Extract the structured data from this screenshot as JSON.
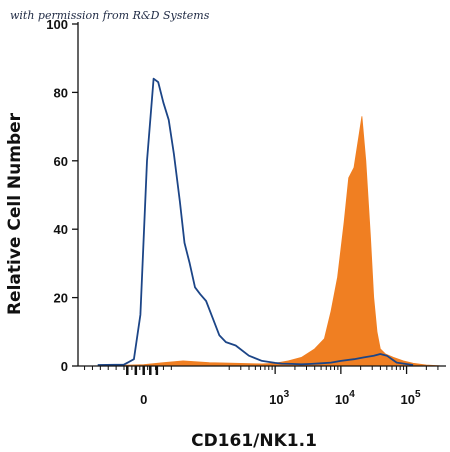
{
  "watermark": "with permission from R&D Systems",
  "chart_data": {
    "type": "area",
    "xlabel": "CD161/NK1.1",
    "ylabel": "Relative Cell Number",
    "ylim": [
      0,
      100
    ],
    "y_ticks": [
      "0",
      "20",
      "40",
      "60",
      "80",
      "100"
    ],
    "x_ticks": [
      {
        "base": "0",
        "exp": ""
      },
      {
        "base": "10",
        "exp": "3"
      },
      {
        "base": "10",
        "exp": "4"
      },
      {
        "base": "10",
        "exp": "5"
      }
    ],
    "x_scale": "biexponential",
    "grid": false,
    "legend": "none",
    "colors": {
      "isotype": "#1c4587",
      "stained": "#f07f22"
    },
    "series": [
      {
        "style": "outline",
        "color": "#1c4587",
        "x": [
          -0.7,
          -0.3,
          -0.15,
          -0.05,
          0.05,
          0.15,
          0.22,
          0.3,
          0.38,
          0.46,
          0.55,
          0.62,
          0.7,
          0.78,
          0.86,
          0.95,
          1.05,
          1.15,
          1.25,
          1.4,
          1.6,
          1.8,
          2.0,
          2.1,
          2.25,
          2.4,
          2.55,
          2.7,
          2.85,
          3.0,
          3.2,
          3.35,
          3.5,
          3.6,
          3.7,
          3.85,
          4.1
        ],
        "y": [
          0.3,
          0.4,
          2,
          15,
          60,
          84,
          83,
          77,
          72,
          62,
          48,
          36,
          30,
          23,
          21,
          19,
          14,
          9,
          7,
          6,
          3,
          1.5,
          0.9,
          0.7,
          0.6,
          0.5,
          0.6,
          0.8,
          1,
          1.5,
          2,
          2.5,
          3,
          3.5,
          3,
          1,
          0.3
        ]
      },
      {
        "style": "filled",
        "color": "#f07f22",
        "x": [
          -0.3,
          0,
          0.3,
          0.6,
          1.0,
          1.4,
          1.8,
          2.0,
          2.2,
          2.4,
          2.6,
          2.75,
          2.85,
          2.95,
          3.05,
          3.12,
          3.2,
          3.28,
          3.32,
          3.38,
          3.45,
          3.5,
          3.55,
          3.6,
          3.68,
          3.8,
          3.95,
          4.1,
          4.3,
          4.5
        ],
        "y": [
          0.2,
          0.4,
          1,
          1.5,
          1,
          0.8,
          0.6,
          0.8,
          1.5,
          2.5,
          5,
          8,
          16,
          26,
          42,
          55,
          58,
          68,
          73,
          60,
          38,
          20,
          10,
          5,
          3.5,
          2.5,
          1.5,
          0.8,
          0.3,
          0.1
        ]
      }
    ]
  }
}
